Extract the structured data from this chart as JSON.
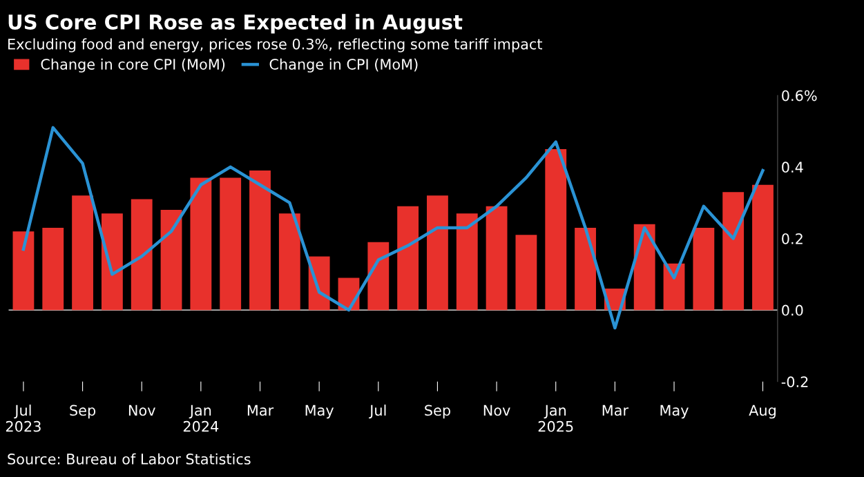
{
  "chart_data": {
    "type": "bar",
    "title": "US Core CPI Rose as Expected in August",
    "subtitle": "Excluding food and energy, prices rose 0.3%, reflecting some tariff impact",
    "categories": [
      "Jul\n2023",
      null,
      "Sep",
      null,
      "Nov",
      null,
      "Jan\n2024",
      null,
      "Mar",
      null,
      "May",
      null,
      "Jul",
      null,
      "Sep",
      null,
      "Nov",
      null,
      "Jan\n2025",
      null,
      "Mar",
      null,
      "May",
      null,
      null,
      "Aug"
    ],
    "series": [
      {
        "name": "Change in core CPI (MoM)",
        "color": "#e8312c",
        "values": [
          0.22,
          0.23,
          0.32,
          0.27,
          0.31,
          0.28,
          0.37,
          0.37,
          0.39,
          0.27,
          0.15,
          0.09,
          0.19,
          0.29,
          0.32,
          0.27,
          0.29,
          0.21,
          0.45,
          0.23,
          0.06,
          0.24,
          0.13,
          0.23,
          0.33,
          0.35
        ]
      },
      {
        "name": "Change in CPI (MoM)",
        "type": "line",
        "color": "#2a93d5",
        "values": [
          0.17,
          0.51,
          0.41,
          0.1,
          0.15,
          0.22,
          0.35,
          0.4,
          0.35,
          0.3,
          0.05,
          0.0,
          0.14,
          0.18,
          0.23,
          0.23,
          0.29,
          0.37,
          0.47,
          0.23,
          -0.05,
          0.23,
          0.09,
          0.29,
          0.2,
          0.39
        ]
      }
    ],
    "ylim": [
      -0.2,
      0.6
    ],
    "yticks": [
      {
        "value": 0.6,
        "label": "0.6%"
      },
      0.4,
      0.2,
      {
        "value": 0,
        "label": "0.0"
      },
      -0.2
    ],
    "ref_lines": [
      {
        "axis": "y",
        "value": 0,
        "color": "#ffffff"
      }
    ],
    "legend": "top left",
    "grid": false,
    "marker": "none",
    "line_style": "solid",
    "annotations": [
      "Source: Bureau of Labor Statistics"
    ]
  }
}
